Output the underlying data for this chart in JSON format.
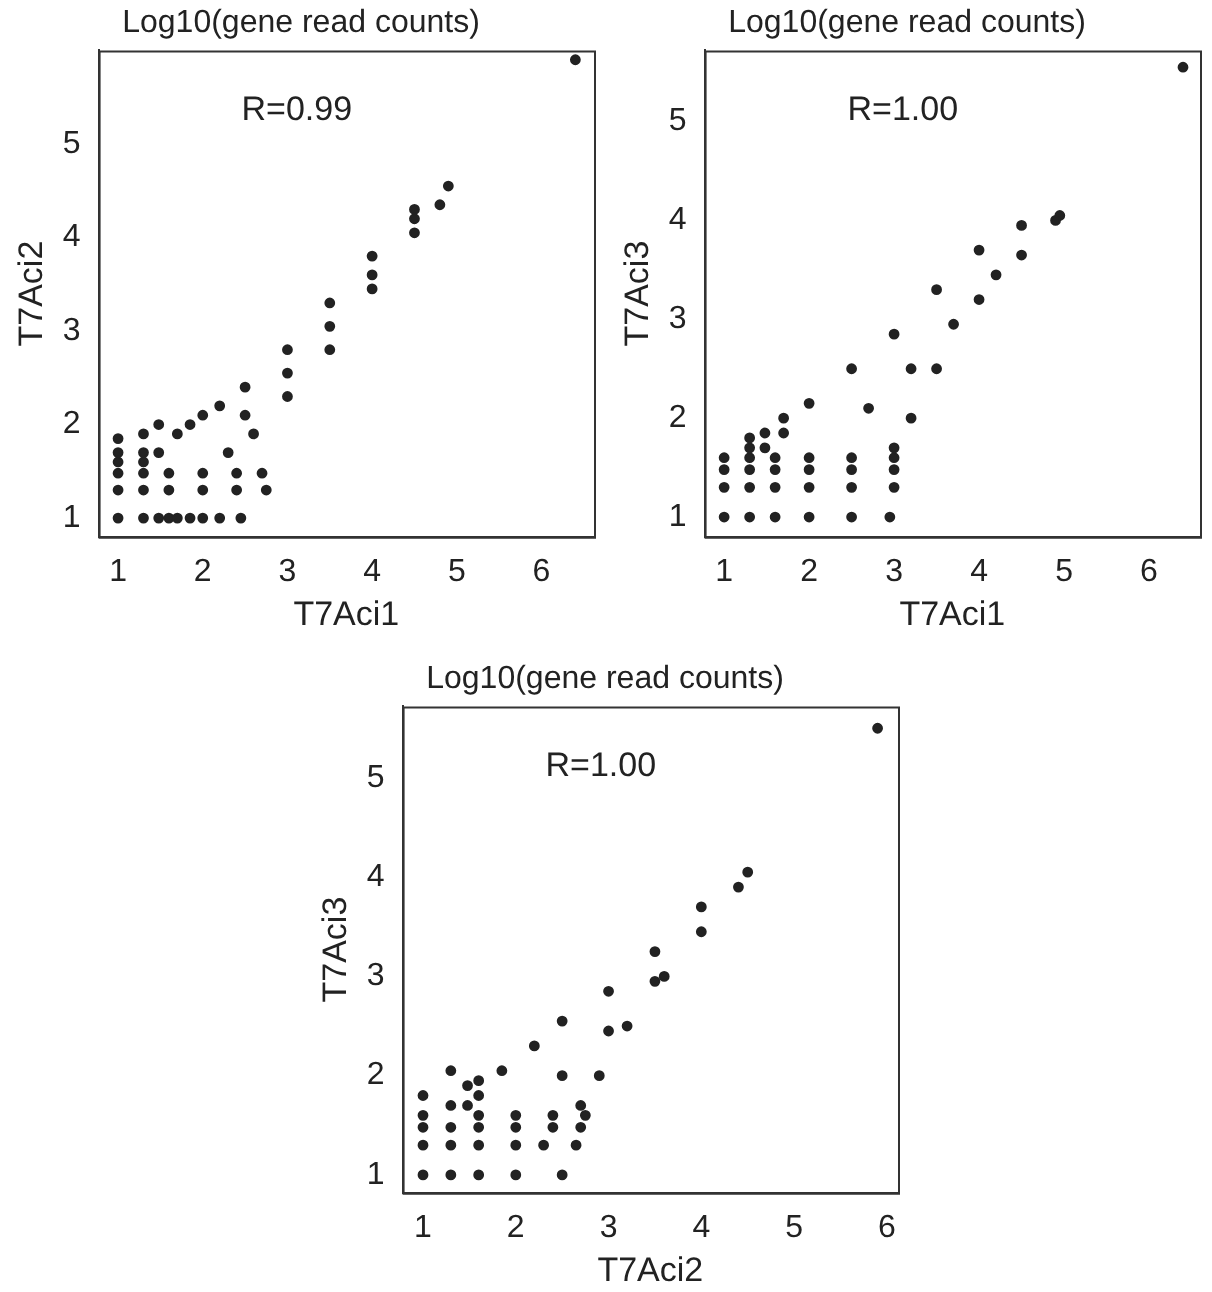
{
  "chart_data": [
    {
      "type": "scatter",
      "title": "Log10(gene read counts)",
      "xlabel": "T7Aci1",
      "ylabel": "T7Aci2",
      "annotations": [
        "R=0.99"
      ],
      "xlim": [
        0.77,
        6.62
      ],
      "ylim": [
        0.8,
        6.0
      ],
      "xticks": [
        1,
        2,
        3,
        4,
        5,
        6
      ],
      "yticks": [
        1,
        2,
        3,
        4,
        5
      ],
      "grid": false,
      "legend": false,
      "marker": "circle",
      "series": [
        {
          "color": "#222222",
          "x": [
            1,
            1.3,
            1.48,
            1.6,
            1.7,
            1.85,
            2,
            2.2,
            2.45,
            1,
            1.3,
            1.6,
            2,
            2.4,
            2.75,
            1,
            1.3,
            1.6,
            2,
            2.4,
            2.7,
            1,
            1,
            1,
            1.3,
            1.3,
            1.3,
            1.48,
            1.48,
            1.7,
            1.85,
            2.0,
            2.2,
            2.5,
            3,
            3.5,
            4,
            4.5,
            4.9,
            2.3,
            2.6,
            3,
            3.5,
            4,
            4.5,
            4.8,
            2.5,
            3,
            3.5,
            4,
            4.5,
            6.4
          ],
          "values": [
            1,
            1,
            1,
            1,
            1,
            1,
            1,
            1,
            1,
            1.3,
            1.3,
            1.3,
            1.3,
            1.3,
            1.3,
            1.48,
            1.48,
            1.48,
            1.48,
            1.48,
            1.48,
            1.6,
            1.7,
            1.85,
            1.6,
            1.7,
            1.9,
            1.7,
            2.0,
            1.9,
            2.0,
            2.1,
            2.2,
            2.4,
            2.8,
            3.3,
            3.8,
            4.3,
            4.55,
            1.7,
            1.9,
            2.3,
            2.8,
            3.45,
            4.05,
            4.35,
            2.1,
            2.55,
            3.05,
            3.6,
            4.2,
            5.9
          ]
        }
      ]
    },
    {
      "type": "scatter",
      "title": "Log10(gene read counts)",
      "xlabel": "T7Aci1",
      "ylabel": "T7Aci3",
      "annotations": [
        "R=1.00"
      ],
      "xlim": [
        0.77,
        6.6
      ],
      "ylim": [
        0.8,
        5.72
      ],
      "xticks": [
        1,
        2,
        3,
        4,
        5,
        6
      ],
      "yticks": [
        1,
        2,
        3,
        4,
        5
      ],
      "grid": false,
      "legend": false,
      "marker": "circle",
      "series": [
        {
          "color": "#222222",
          "x": [
            1,
            1.3,
            1.6,
            2,
            2.5,
            2.95,
            1,
            1.3,
            1.6,
            2,
            2.5,
            3,
            1,
            1.3,
            1.6,
            2,
            2.5,
            3,
            1.3,
            1.6,
            2,
            2.5,
            3,
            1,
            1.3,
            1.3,
            1.48,
            1.48,
            1.7,
            1.7,
            2,
            2.5,
            3,
            3.5,
            4,
            4.5,
            4.95,
            3,
            3.2,
            3.5,
            4,
            4.5,
            4.9,
            2.7,
            3.2,
            3.7,
            4.2,
            6.4
          ],
          "values": [
            1,
            1,
            1,
            1,
            1,
            1,
            1.3,
            1.3,
            1.3,
            1.3,
            1.3,
            1.3,
            1.48,
            1.48,
            1.48,
            1.48,
            1.48,
            1.48,
            1.6,
            1.6,
            1.6,
            1.6,
            1.6,
            1.6,
            1.7,
            1.8,
            1.7,
            1.85,
            1.85,
            2.0,
            2.15,
            2.5,
            2.85,
            3.3,
            3.7,
            3.95,
            4.05,
            1.7,
            2.0,
            2.5,
            3.2,
            3.65,
            4.0,
            2.1,
            2.5,
            2.95,
            3.45,
            5.55
          ]
        }
      ]
    },
    {
      "type": "scatter",
      "title": "Log10(gene read counts)",
      "xlabel": "T7Aci2",
      "ylabel": "T7Aci3",
      "annotations": [
        "R=1.00"
      ],
      "xlim": [
        0.78,
        6.12
      ],
      "ylim": [
        0.82,
        5.72
      ],
      "xticks": [
        1,
        2,
        3,
        4,
        5,
        6
      ],
      "yticks": [
        1,
        2,
        3,
        4,
        5
      ],
      "grid": false,
      "legend": false,
      "marker": "circle",
      "series": [
        {
          "color": "#222222",
          "x": [
            1,
            1.3,
            1.6,
            2,
            2.5,
            1,
            1.3,
            1.6,
            2,
            2.3,
            2.65,
            1,
            1.3,
            1.6,
            2,
            2.4,
            2.7,
            1.6,
            2,
            2.4,
            2.75,
            1,
            1,
            1.3,
            1.3,
            1.48,
            1.48,
            1.6,
            1.6,
            1.85,
            2.2,
            2.5,
            3,
            3.5,
            4,
            4.5,
            2.7,
            2.9,
            3.2,
            3.6,
            4,
            4.4,
            2.5,
            3,
            3.5,
            5.9
          ],
          "values": [
            1,
            1,
            1,
            1,
            1,
            1.3,
            1.3,
            1.3,
            1.3,
            1.3,
            1.3,
            1.48,
            1.48,
            1.48,
            1.48,
            1.48,
            1.48,
            1.6,
            1.6,
            1.6,
            1.6,
            1.6,
            1.8,
            1.7,
            2.05,
            1.7,
            1.9,
            1.8,
            1.95,
            2.05,
            2.3,
            2.55,
            2.85,
            3.25,
            3.7,
            4.05,
            1.7,
            2.0,
            2.5,
            3.0,
            3.45,
            3.9,
            2.0,
            2.45,
            2.95,
            5.5
          ]
        }
      ]
    }
  ]
}
